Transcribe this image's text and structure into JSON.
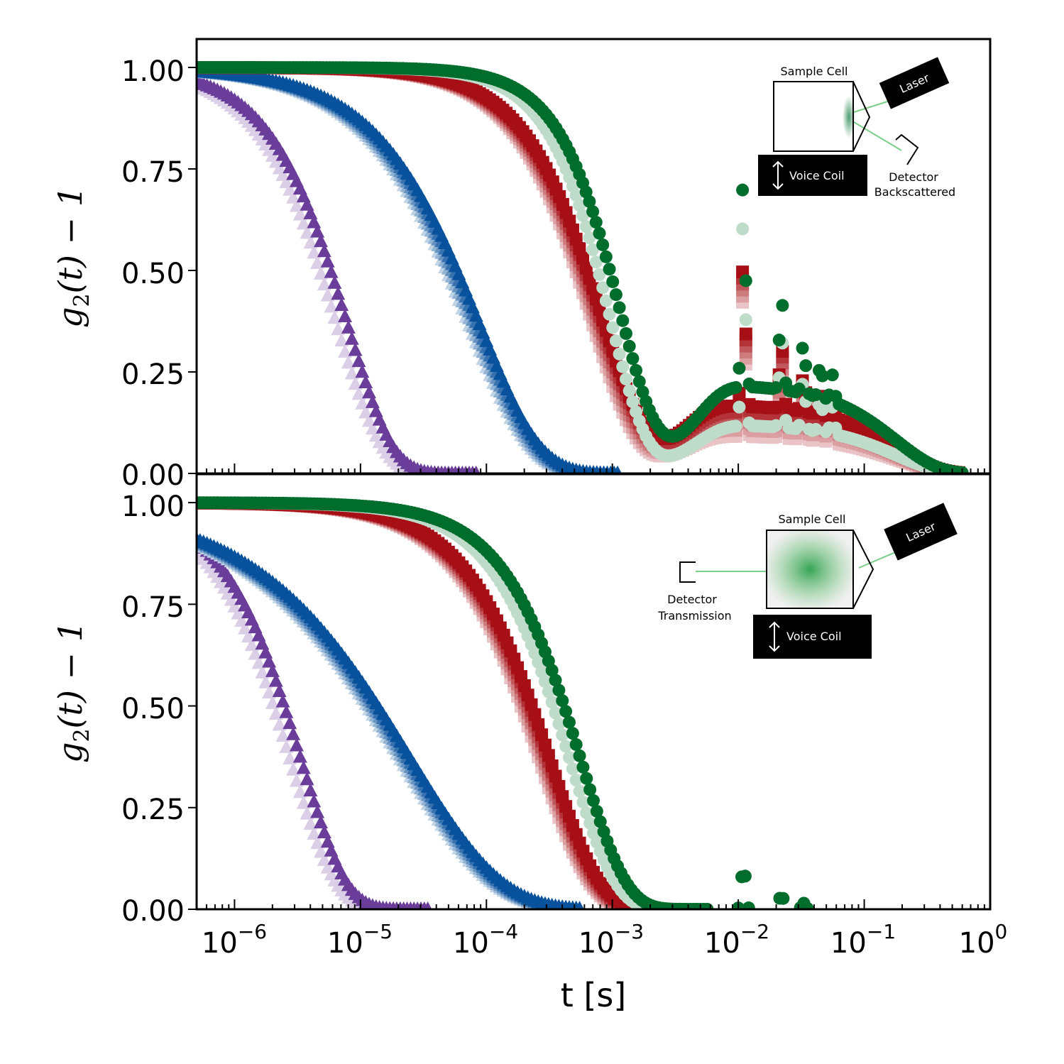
{
  "chart_data": [
    {
      "type": "scatter",
      "panel": "top",
      "xscale": "log",
      "xlim": [
        5e-07,
        1
      ],
      "ylim": [
        0,
        1.07
      ],
      "ylabel_main": "g",
      "ylabel_sub": "2",
      "ylabel_tail": "(t) − 1",
      "yticks": [
        "0.00",
        "0.25",
        "0.50",
        "0.75",
        "1.00"
      ],
      "series": [
        {
          "name": "purple",
          "marker": "triangle",
          "color": "#6a3d9a",
          "tau": 1.4e-05,
          "beta": 1.2,
          "shades": 2
        },
        {
          "name": "blue",
          "marker": "triangle",
          "color": "#08519c",
          "tau": 0.00019,
          "beta": 0.9,
          "shades": 5
        },
        {
          "name": "red",
          "marker": "square",
          "color": "#a50f15",
          "tau": 0.0015,
          "beta": 1.2,
          "plateau": 0.17,
          "shades": 6
        },
        {
          "name": "green",
          "marker": "circle",
          "color": "#006d2c",
          "tau": 0.0019,
          "beta": 1.5,
          "plateau": 0.22,
          "shades": 2
        }
      ],
      "inset": {
        "sample_cell": "Sample Cell",
        "laser": "Laser",
        "voice_coil": "Voice Coil",
        "detector_line1": "Detector",
        "detector_line2": "Backscattered"
      }
    },
    {
      "type": "scatter",
      "panel": "bottom",
      "xscale": "log",
      "xlim": [
        5e-07,
        1
      ],
      "ylim": [
        0,
        1.07
      ],
      "xlabel": "t [s]",
      "ylabel_main": "g",
      "ylabel_sub": "2",
      "ylabel_tail": "(t) − 1",
      "yticks": [
        "0.00",
        "0.25",
        "0.50",
        "0.75",
        "1.00"
      ],
      "xticks": [
        {
          "base": "10",
          "exp": "−6"
        },
        {
          "base": "10",
          "exp": "−5"
        },
        {
          "base": "10",
          "exp": "−4"
        },
        {
          "base": "10",
          "exp": "−3"
        },
        {
          "base": "10",
          "exp": "−2"
        },
        {
          "base": "10",
          "exp": "−1"
        },
        {
          "base": "10",
          "exp": "0"
        }
      ],
      "series": [
        {
          "name": "purple",
          "marker": "triangle",
          "color": "#6a3d9a",
          "tau": 6e-06,
          "beta": 1.2,
          "shades": 2
        },
        {
          "name": "blue",
          "marker": "triangle",
          "color": "#08519c",
          "tau": 8e-05,
          "beta": 0.6,
          "shades": 5
        },
        {
          "name": "red",
          "marker": "square",
          "color": "#a50f15",
          "tau": 0.0006,
          "beta": 1.1,
          "shades": 6
        },
        {
          "name": "green",
          "marker": "circle",
          "color": "#006d2c",
          "tau": 0.001,
          "beta": 1.2,
          "shades": 2
        }
      ],
      "inset": {
        "sample_cell": "Sample Cell",
        "laser": "Laser",
        "voice_coil": "Voice Coil",
        "detector_line1": "Detector",
        "detector_line2": "Transmission"
      }
    }
  ]
}
